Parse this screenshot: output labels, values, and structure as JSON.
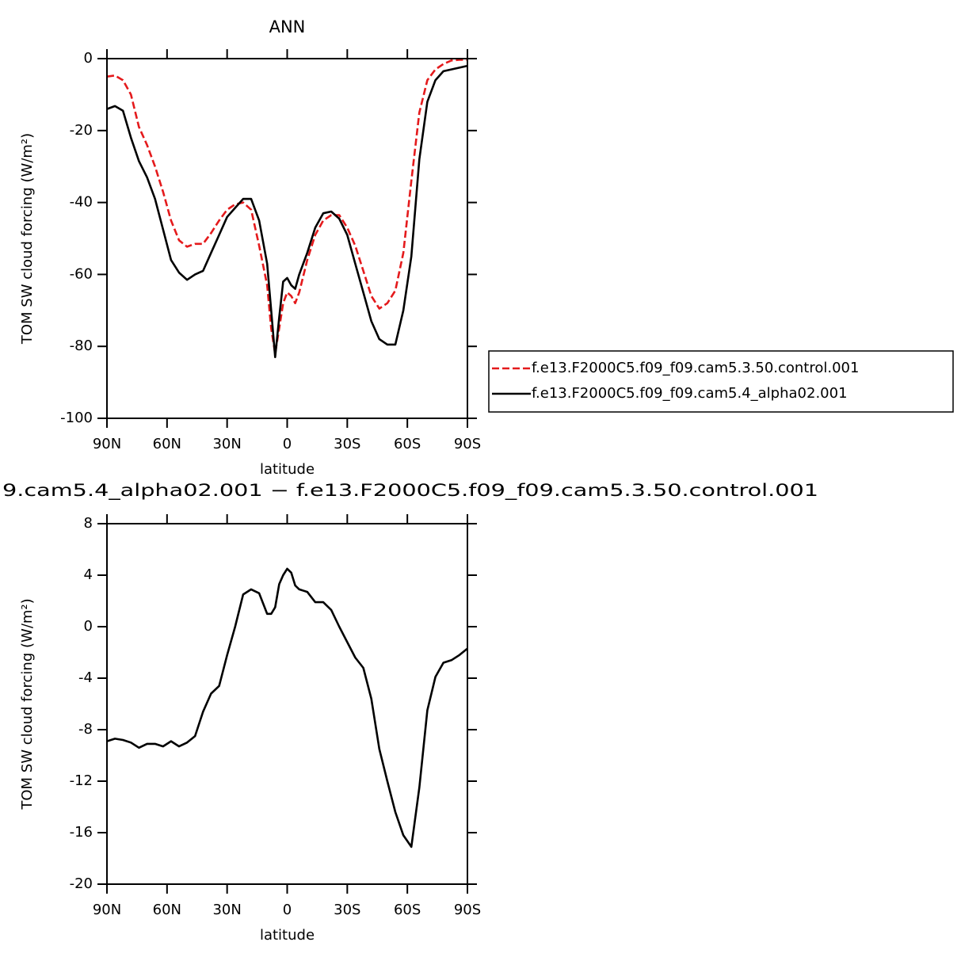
{
  "chart_data": [
    {
      "type": "line",
      "title": "ANN",
      "xlabel": "latitude",
      "ylabel": "TOM SW cloud forcing (W/m²)",
      "xlim": [
        90,
        -90
      ],
      "ylim": [
        -100,
        0
      ],
      "xticks": [
        {
          "value": 90,
          "label": "90N"
        },
        {
          "value": 60,
          "label": "60N"
        },
        {
          "value": 30,
          "label": "30N"
        },
        0,
        {
          "value": -30,
          "label": "30S"
        },
        {
          "value": -60,
          "label": "60S"
        },
        {
          "value": -90,
          "label": "90S"
        }
      ],
      "yticks": [
        -100,
        -80,
        -60,
        -40,
        -20,
        0
      ],
      "legend": "right",
      "x": [
        90,
        86,
        82,
        78,
        74,
        70,
        66,
        62,
        58,
        54,
        50,
        46,
        42,
        38,
        34,
        30,
        26,
        22,
        18,
        14,
        10,
        8,
        6,
        4,
        2,
        0,
        -2,
        -4,
        -6,
        -10,
        -14,
        -18,
        -22,
        -26,
        -30,
        -34,
        -38,
        -42,
        -46,
        -50,
        -54,
        -58,
        -62,
        -66,
        -70,
        -74,
        -78,
        -82,
        -86,
        -90
      ],
      "series": [
        {
          "name": "f.e13.F2000C5.f09_f09.cam5.3.50.control.001",
          "color": "#e41a1c",
          "style": "dashed",
          "values": [
            -5,
            -4.7,
            -6,
            -10,
            -19,
            -24,
            -30,
            -37,
            -45,
            -50.5,
            -52.3,
            -51.5,
            -51.5,
            -48.5,
            -45,
            -42,
            -40.5,
            -40,
            -42,
            -52,
            -63,
            -75,
            -82,
            -75,
            -68,
            -65,
            -66,
            -68,
            -65,
            -56,
            -49,
            -45,
            -43.5,
            -43.5,
            -47,
            -52,
            -59,
            -66,
            -69.5,
            -68,
            -64.5,
            -54,
            -34,
            -15,
            -6,
            -3,
            -1.5,
            -0.5,
            -0.3,
            -0.3
          ]
        },
        {
          "name": "f.e13.F2000C5.f09_f09.cam5.4_alpha02.001",
          "color": "#000000",
          "style": "solid",
          "values": [
            -14,
            -13.2,
            -14.5,
            -22,
            -28.5,
            -33,
            -39,
            -47.5,
            -56,
            -59.5,
            -61.5,
            -60,
            -59,
            -54,
            -49,
            -44,
            -41.5,
            -39,
            -39,
            -45,
            -57,
            -70,
            -83,
            -72,
            -62,
            -61,
            -63,
            -64,
            -60,
            -54,
            -47,
            -43,
            -42.5,
            -44.5,
            -49,
            -57,
            -65,
            -73,
            -78,
            -79.5,
            -79.5,
            -70,
            -55,
            -28,
            -12,
            -6,
            -3.5,
            -3,
            -2.5,
            -2
          ]
        }
      ]
    },
    {
      "type": "line",
      "title": "9.cam5.4_alpha02.001 − f.e13.F2000C5.f09_f09.cam5.3.50.control.001",
      "xlabel": "latitude",
      "ylabel": "TOM SW cloud forcing (W/m²)",
      "xlim": [
        90,
        -90
      ],
      "ylim": [
        -20,
        8
      ],
      "xticks": [
        {
          "value": 90,
          "label": "90N"
        },
        {
          "value": 60,
          "label": "60N"
        },
        {
          "value": 30,
          "label": "30N"
        },
        0,
        {
          "value": -30,
          "label": "30S"
        },
        {
          "value": -60,
          "label": "60S"
        },
        {
          "value": -90,
          "label": "90S"
        }
      ],
      "yticks": [
        -20,
        -16,
        -12,
        -8,
        -4,
        0,
        4,
        8
      ],
      "x": [
        90,
        86,
        82,
        78,
        74,
        70,
        66,
        62,
        58,
        54,
        50,
        46,
        42,
        38,
        34,
        30,
        26,
        22,
        18,
        14,
        10,
        8,
        6,
        4,
        2,
        0,
        -2,
        -4,
        -6,
        -10,
        -14,
        -18,
        -22,
        -26,
        -30,
        -34,
        -38,
        -42,
        -46,
        -50,
        -54,
        -58,
        -62,
        -66,
        -70,
        -74,
        -78,
        -82,
        -86,
        -90
      ],
      "series": [
        {
          "color": "#000000",
          "style": "solid",
          "values": [
            -8.9,
            -8.7,
            -8.8,
            -9.0,
            -9.4,
            -9.1,
            -9.1,
            -9.3,
            -8.9,
            -9.3,
            -9.0,
            -8.5,
            -6.6,
            -5.2,
            -4.6,
            -2.2,
            0,
            2.5,
            2.9,
            2.6,
            1.0,
            1.0,
            1.5,
            3.3,
            4.0,
            4.5,
            4.2,
            3.2,
            2.9,
            2.7,
            1.9,
            1.9,
            1.3,
            0,
            -1.2,
            -2.4,
            -3.2,
            -5.6,
            -9.5,
            -12,
            -14.4,
            -16.2,
            -17.1,
            -12.5,
            -6.5,
            -3.9,
            -2.8,
            -2.6,
            -2.2,
            -1.7
          ]
        }
      ]
    }
  ]
}
